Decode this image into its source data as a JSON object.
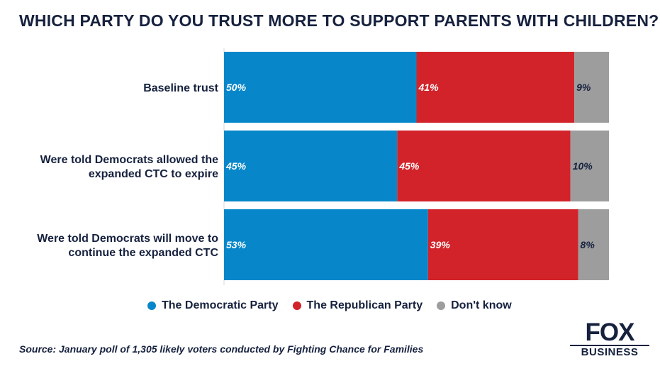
{
  "chart_data": {
    "type": "bar",
    "orientation": "horizontal",
    "stacked": true,
    "title": "WHICH PARTY DO YOU TRUST MORE TO SUPPORT PARENTS WITH CHILDREN?",
    "categories": [
      [
        "Baseline trust"
      ],
      [
        "Were told Democrats allowed the",
        "expanded CTC to expire"
      ],
      [
        "Were told Democrats will move to",
        "continue the expanded CTC"
      ]
    ],
    "series": [
      {
        "name": "The Democratic Party",
        "color": "#0787c9",
        "values": [
          50,
          45,
          53
        ],
        "labels": [
          "50%",
          "45%",
          "53%"
        ]
      },
      {
        "name": "The Republican Party",
        "color": "#d2232a",
        "values": [
          41,
          45,
          39
        ],
        "labels": [
          "41%",
          "45%",
          "39%"
        ]
      },
      {
        "name": "Don't know",
        "color": "#9d9d9d",
        "values": [
          9,
          10,
          8
        ],
        "labels": [
          "9%",
          "10%",
          "8%"
        ]
      }
    ],
    "xlim": [
      0,
      100
    ],
    "grid": false,
    "legend_position": "bottom"
  },
  "source": "Source: January poll of 1,305 likely voters conducted by Fighting Chance for Families",
  "logo": {
    "line1": "FOX",
    "line2": "BUSINESS"
  }
}
